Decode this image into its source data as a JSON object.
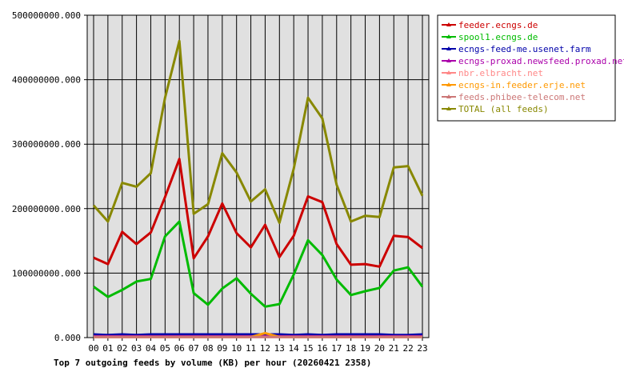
{
  "chart_data": {
    "type": "line",
    "title": "Top 7 outgoing feeds by volume (KB) per hour (20260421 2358)",
    "x": [
      "00",
      "01",
      "02",
      "03",
      "04",
      "05",
      "06",
      "07",
      "08",
      "09",
      "10",
      "11",
      "12",
      "13",
      "14",
      "15",
      "16",
      "17",
      "18",
      "19",
      "20",
      "21",
      "22",
      "23"
    ],
    "ylim": [
      0,
      500000000
    ],
    "y_ticks": [
      "0.000",
      "100000000.000",
      "200000000.000",
      "300000000.000",
      "400000000.000",
      "500000000.000"
    ],
    "y_tick_values": [
      0,
      100000000,
      200000000,
      300000000,
      400000000,
      500000000
    ],
    "grid": true,
    "legend_position": "right",
    "series": [
      {
        "name": "feeder.ecngs.de",
        "color": "#cc0000",
        "values": [
          124000000,
          114000000,
          164000000,
          145000000,
          163000000,
          218000000,
          277000000,
          123000000,
          157000000,
          208000000,
          162000000,
          140000000,
          175000000,
          125000000,
          158000000,
          219000000,
          210000000,
          145000000,
          113000000,
          114000000,
          110000000,
          158000000,
          156000000,
          139000000
        ]
      },
      {
        "name": "spool1.ecngs.de",
        "color": "#00bb00",
        "values": [
          79000000,
          63000000,
          74000000,
          87000000,
          91000000,
          157000000,
          180000000,
          69000000,
          51000000,
          76000000,
          92000000,
          68000000,
          48000000,
          52000000,
          98000000,
          151000000,
          128000000,
          90000000,
          66000000,
          72000000,
          77000000,
          104000000,
          109000000,
          79000000
        ]
      },
      {
        "name": "ecngs-feed-me.usenet.farm",
        "color": "#0000aa",
        "values": [
          5000000,
          4000000,
          5000000,
          4000000,
          5000000,
          5000000,
          5000000,
          5000000,
          5000000,
          5000000,
          5000000,
          5000000,
          5000000,
          5000000,
          4000000,
          5000000,
          4000000,
          5000000,
          5000000,
          5000000,
          5000000,
          4000000,
          4000000,
          5000000
        ]
      },
      {
        "name": "ecngs-proxad.newsfeed.proxad.net",
        "color": "#aa00aa",
        "values": [
          2000000,
          2000000,
          2000000,
          2000000,
          2000000,
          2000000,
          2000000,
          2000000,
          2000000,
          2000000,
          2000000,
          2000000,
          2000000,
          2000000,
          2000000,
          2000000,
          2000000,
          2000000,
          2000000,
          2000000,
          2000000,
          2000000,
          2000000,
          2000000
        ]
      },
      {
        "name": "nbr.elbracht.net",
        "color": "#ff8888",
        "values": [
          1000000,
          1000000,
          1000000,
          1000000,
          1000000,
          1000000,
          1000000,
          1000000,
          1000000,
          1000000,
          1000000,
          1000000,
          1000000,
          1000000,
          1000000,
          1000000,
          1000000,
          1000000,
          1000000,
          1000000,
          1000000,
          1000000,
          1000000,
          1000000
        ]
      },
      {
        "name": "ecngs-in.feeder.erje.net",
        "color": "#ff9900",
        "values": [
          1000000,
          1000000,
          1000000,
          1000000,
          1000000,
          1000000,
          1000000,
          1000000,
          1000000,
          1000000,
          1000000,
          1000000,
          7000000,
          1000000,
          1000000,
          1000000,
          1000000,
          1000000,
          1000000,
          1000000,
          1000000,
          1000000,
          1000000,
          1000000
        ]
      },
      {
        "name": "feeds.phibee-telecom.net",
        "color": "#cc7777",
        "values": [
          1000000,
          1000000,
          1000000,
          1000000,
          1000000,
          1000000,
          1000000,
          1000000,
          1000000,
          1000000,
          1000000,
          1000000,
          1000000,
          1000000,
          1000000,
          1000000,
          1000000,
          1000000,
          1000000,
          1000000,
          1000000,
          1000000,
          1000000,
          1000000
        ]
      },
      {
        "name": "TOTAL (all feeds)",
        "color": "#888800",
        "values": [
          205000000,
          180000000,
          240000000,
          234000000,
          255000000,
          372000000,
          460000000,
          192000000,
          207000000,
          286000000,
          256000000,
          211000000,
          230000000,
          178000000,
          262000000,
          372000000,
          340000000,
          237000000,
          180000000,
          189000000,
          187000000,
          264000000,
          266000000,
          220000000
        ]
      }
    ]
  }
}
